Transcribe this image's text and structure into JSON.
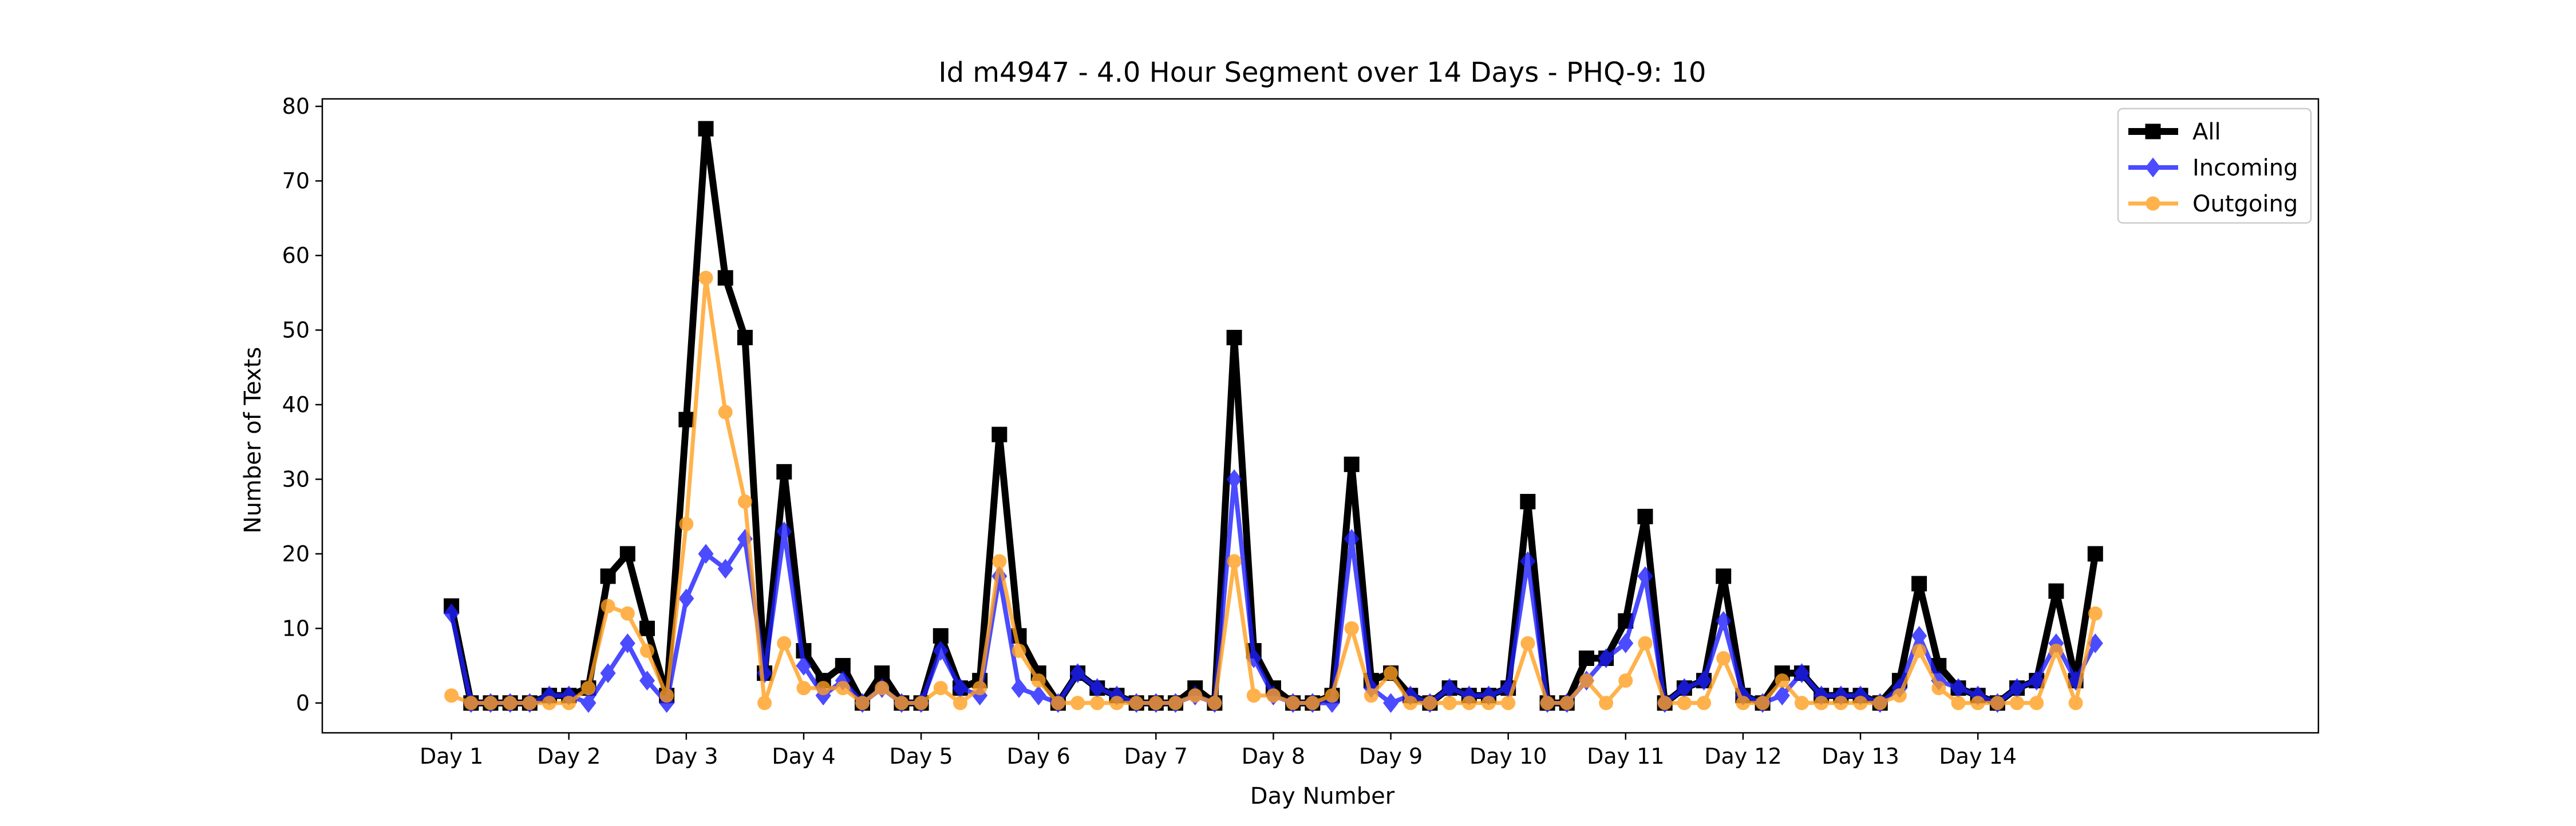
{
  "chart_data": {
    "type": "line",
    "title": "Id m4947 - 4.0 Hour Segment over 14 Days - PHQ-9: 10",
    "xlabel": "Day Number",
    "ylabel": "Number of Texts",
    "ylim": [
      -4,
      81
    ],
    "yticks": [
      0,
      10,
      20,
      30,
      40,
      50,
      60,
      70,
      80
    ],
    "xlim": [
      -0.55,
      7.95
    ],
    "xtick_positions": [
      0,
      0.5,
      1,
      1.5,
      2,
      2.5,
      3,
      3.5,
      4,
      4.5,
      5,
      5.5,
      6,
      6.5
    ],
    "xtick_labels": [
      "Day 1",
      "Day 2",
      "Day 3",
      "Day 4",
      "Day 5",
      "Day 6",
      "Day 7",
      "Day 8",
      "Day 9",
      "Day 10",
      "Day 11",
      "Day 12",
      "Day 13",
      "Day 14"
    ],
    "x_step": 0.0833333,
    "grid": false,
    "legend_position": "upper right",
    "series": [
      {
        "name": "All",
        "color": "#000000",
        "marker": "square",
        "values": [
          13,
          0,
          0,
          0,
          0,
          1,
          1,
          2,
          17,
          20,
          10,
          1,
          38,
          77,
          57,
          49,
          4,
          31,
          7,
          3,
          5,
          0,
          4,
          0,
          0,
          9,
          2,
          3,
          36,
          9,
          4,
          0,
          4,
          2,
          1,
          0,
          0,
          0,
          2,
          0,
          49,
          7,
          2,
          0,
          0,
          1,
          32,
          3,
          4,
          1,
          0,
          2,
          1,
          1,
          2,
          27,
          0,
          0,
          6,
          6,
          11,
          25,
          0,
          2,
          3,
          17,
          1,
          0,
          4,
          4,
          1,
          1,
          1,
          0,
          3,
          16,
          5,
          2,
          1,
          0,
          2,
          3,
          15,
          3,
          20
        ]
      },
      {
        "name": "Incoming",
        "color": "#1f1fff",
        "marker": "diamond",
        "values": [
          12,
          0,
          0,
          0,
          0,
          1,
          1,
          0,
          4,
          8,
          3,
          0,
          14,
          20,
          18,
          22,
          4,
          23,
          5,
          1,
          3,
          0,
          2,
          0,
          0,
          7,
          2,
          1,
          17,
          2,
          1,
          0,
          4,
          2,
          1,
          0,
          0,
          0,
          1,
          0,
          30,
          6,
          1,
          0,
          0,
          0,
          22,
          2,
          0,
          1,
          0,
          2,
          1,
          1,
          2,
          19,
          0,
          0,
          3,
          6,
          8,
          17,
          0,
          2,
          3,
          11,
          1,
          0,
          1,
          4,
          1,
          1,
          1,
          0,
          2,
          9,
          3,
          2,
          1,
          0,
          2,
          3,
          8,
          3,
          8
        ]
      },
      {
        "name": "Outgoing",
        "color": "#ff9f1f",
        "marker": "circle",
        "values": [
          1,
          0,
          0,
          0,
          0,
          0,
          0,
          2,
          13,
          12,
          7,
          1,
          24,
          57,
          39,
          27,
          0,
          8,
          2,
          2,
          2,
          0,
          2,
          0,
          0,
          2,
          0,
          2,
          19,
          7,
          3,
          0,
          0,
          0,
          0,
          0,
          0,
          0,
          1,
          0,
          19,
          1,
          1,
          0,
          0,
          1,
          10,
          1,
          4,
          0,
          0,
          0,
          0,
          0,
          0,
          8,
          0,
          0,
          3,
          0,
          3,
          8,
          0,
          0,
          0,
          6,
          0,
          0,
          3,
          0,
          0,
          0,
          0,
          0,
          1,
          7,
          2,
          0,
          0,
          0,
          0,
          0,
          7,
          0,
          12
        ]
      }
    ]
  }
}
